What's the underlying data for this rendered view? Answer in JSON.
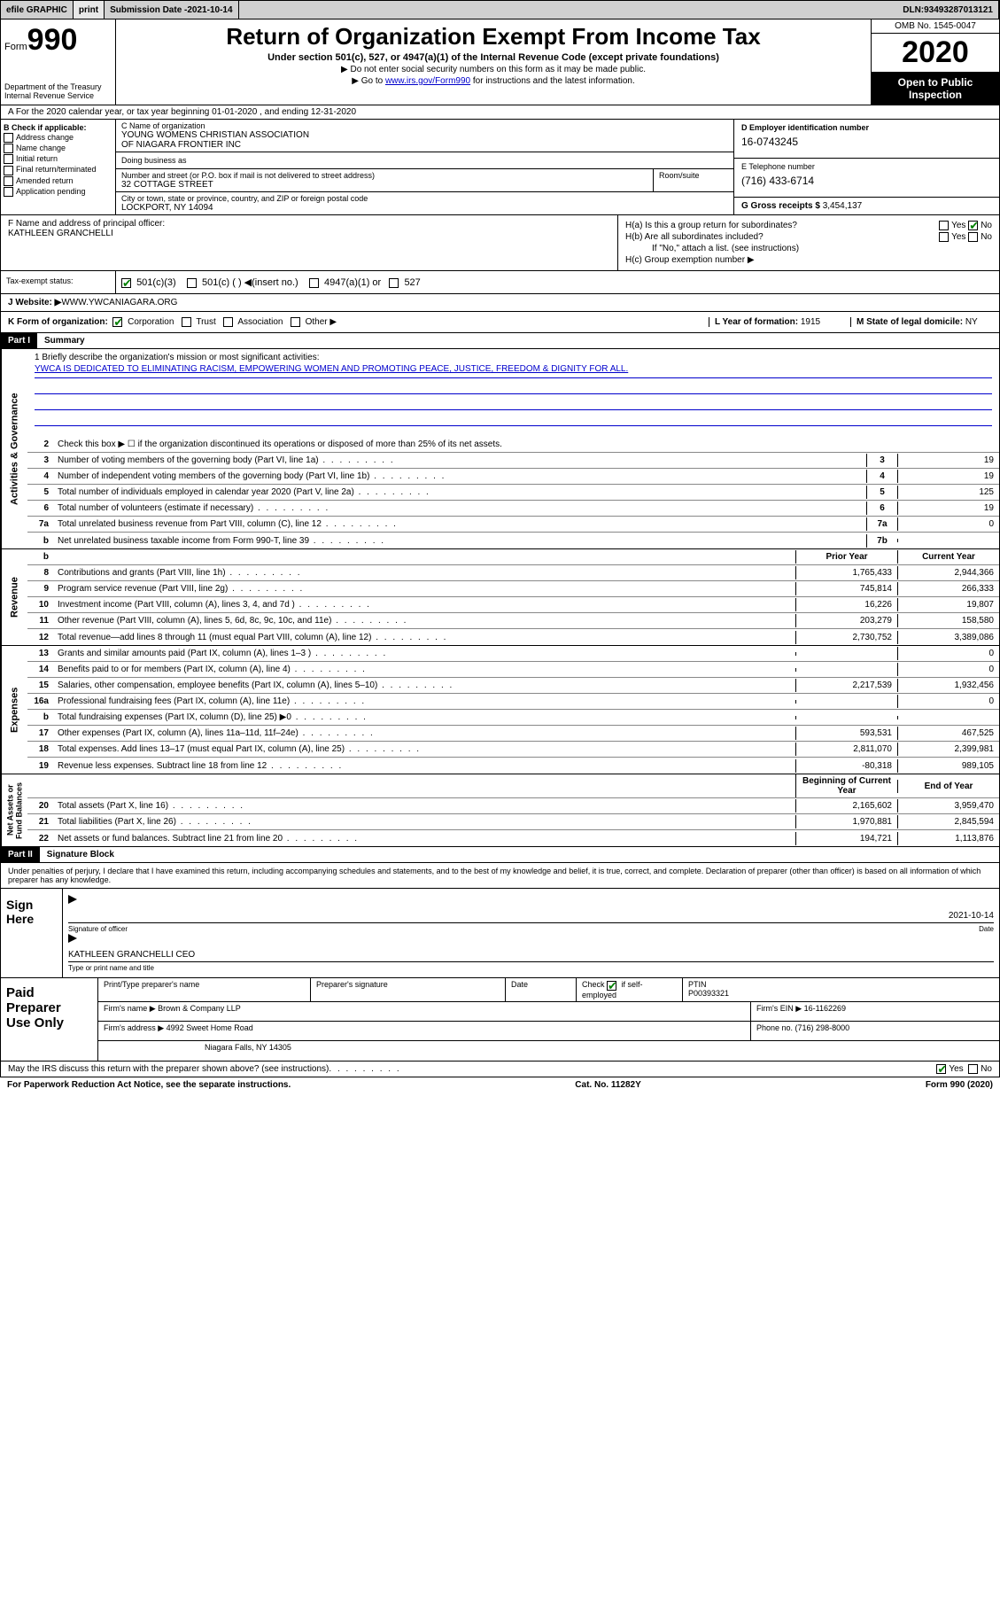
{
  "topbar": {
    "efile": "efile GRAPHIC",
    "print": "print",
    "sub_label": "Submission Date - ",
    "sub_date": "2021-10-14",
    "dln_label": "DLN: ",
    "dln": "93493287013121"
  },
  "header": {
    "form_word": "Form",
    "form_num": "990",
    "dept1": "Department of the Treasury",
    "dept2": "Internal Revenue Service",
    "title": "Return of Organization Exempt From Income Tax",
    "sub": "Under section 501(c), 527, or 4947(a)(1) of the Internal Revenue Code (except private foundations)",
    "arrow1": "▶ Do not enter social security numbers on this form as it may be made public.",
    "arrow2_pre": "▶ Go to ",
    "arrow2_link": "www.irs.gov/Form990",
    "arrow2_post": " for instructions and the latest information.",
    "omb": "OMB No. 1545-0047",
    "year": "2020",
    "open1": "Open to Public",
    "open2": "Inspection"
  },
  "rowA": "A  For the 2020 calendar year, or tax year beginning 01-01-2020     , and ending 12-31-2020",
  "boxB": {
    "label": "B Check if applicable:",
    "opts": [
      "Address change",
      "Name change",
      "Initial return",
      "Final return/terminated",
      "Amended return",
      "Application pending"
    ]
  },
  "boxC": {
    "name_lab": "C Name of organization",
    "name1": "YOUNG WOMENS CHRISTIAN ASSOCIATION",
    "name2": "OF NIAGARA FRONTIER INC",
    "dba_lab": "Doing business as",
    "street_lab": "Number and street (or P.O. box if mail is not delivered to street address)",
    "street": "32 COTTAGE STREET",
    "room_lab": "Room/suite",
    "city_lab": "City or town, state or province, country, and ZIP or foreign postal code",
    "city": "LOCKPORT, NY  14094"
  },
  "boxD": {
    "lab": "D Employer identification number",
    "val": "16-0743245"
  },
  "boxE": {
    "lab": "E Telephone number",
    "val": "(716) 433-6714"
  },
  "boxG": {
    "lab": "G Gross receipts $ ",
    "val": "3,454,137"
  },
  "boxF": {
    "lab": "F  Name and address of principal officer:",
    "val": "KATHLEEN GRANCHELLI"
  },
  "boxH": {
    "a": "H(a)  Is this a group return for subordinates?",
    "b": "H(b)  Are all subordinates included?",
    "note": "If \"No,\" attach a list. (see instructions)",
    "c": "H(c)  Group exemption number ▶"
  },
  "tax": {
    "lab": "Tax-exempt status:",
    "o1": "501(c)(3)",
    "o2": "501(c) (  ) ◀(insert no.)",
    "o3": "4947(a)(1) or",
    "o4": "527"
  },
  "rowJ": {
    "lab": "J    Website: ▶  ",
    "val": "WWW.YWCANIAGARA.ORG"
  },
  "rowK": {
    "k": "K Form of organization:",
    "opts": [
      "Corporation",
      "Trust",
      "Association",
      "Other ▶"
    ],
    "l_lab": "L Year of formation: ",
    "l_val": "1915",
    "m_lab": "M State of legal domicile: ",
    "m_val": "NY"
  },
  "part1": {
    "num": "Part I",
    "title": "Summary"
  },
  "mission": {
    "q": "1  Briefly describe the organization's mission or most significant activities:",
    "a": "YWCA IS DEDICATED TO ELIMINATING RACISM, EMPOWERING WOMEN AND PROMOTING PEACE, JUSTICE, FREEDOM & DIGNITY FOR ALL."
  },
  "gov": {
    "l2": "Check this box ▶ ☐  if the organization discontinued its operations or disposed of more than 25% of its net assets.",
    "rows": [
      {
        "n": "3",
        "d": "Number of voting members of the governing body (Part VI, line 1a)",
        "b": "3",
        "v": "19"
      },
      {
        "n": "4",
        "d": "Number of independent voting members of the governing body (Part VI, line 1b)",
        "b": "4",
        "v": "19"
      },
      {
        "n": "5",
        "d": "Total number of individuals employed in calendar year 2020 (Part V, line 2a)",
        "b": "5",
        "v": "125"
      },
      {
        "n": "6",
        "d": "Total number of volunteers (estimate if necessary)",
        "b": "6",
        "v": "19"
      },
      {
        "n": "7a",
        "d": "Total unrelated business revenue from Part VIII, column (C), line 12",
        "b": "7a",
        "v": "0"
      },
      {
        "n": "b",
        "d": "Net unrelated business taxable income from Form 990-T, line 39",
        "b": "7b",
        "v": ""
      }
    ]
  },
  "rev": {
    "hdr_prior": "Prior Year",
    "hdr_curr": "Current Year",
    "rows": [
      {
        "n": "8",
        "d": "Contributions and grants (Part VIII, line 1h)",
        "p": "1,765,433",
        "c": "2,944,366"
      },
      {
        "n": "9",
        "d": "Program service revenue (Part VIII, line 2g)",
        "p": "745,814",
        "c": "266,333"
      },
      {
        "n": "10",
        "d": "Investment income (Part VIII, column (A), lines 3, 4, and 7d )",
        "p": "16,226",
        "c": "19,807"
      },
      {
        "n": "11",
        "d": "Other revenue (Part VIII, column (A), lines 5, 6d, 8c, 9c, 10c, and 11e)",
        "p": "203,279",
        "c": "158,580"
      },
      {
        "n": "12",
        "d": "Total revenue—add lines 8 through 11 (must equal Part VIII, column (A), line 12)",
        "p": "2,730,752",
        "c": "3,389,086"
      }
    ]
  },
  "exp": {
    "rows": [
      {
        "n": "13",
        "d": "Grants and similar amounts paid (Part IX, column (A), lines 1–3 )",
        "p": "",
        "c": "0"
      },
      {
        "n": "14",
        "d": "Benefits paid to or for members (Part IX, column (A), line 4)",
        "p": "",
        "c": "0"
      },
      {
        "n": "15",
        "d": "Salaries, other compensation, employee benefits (Part IX, column (A), lines 5–10)",
        "p": "2,217,539",
        "c": "1,932,456"
      },
      {
        "n": "16a",
        "d": "Professional fundraising fees (Part IX, column (A), line 11e)",
        "p": "",
        "c": "0"
      },
      {
        "n": "b",
        "d": "Total fundraising expenses (Part IX, column (D), line 25) ▶0",
        "p": "",
        "c": ""
      },
      {
        "n": "17",
        "d": "Other expenses (Part IX, column (A), lines 11a–11d, 11f–24e)",
        "p": "593,531",
        "c": "467,525"
      },
      {
        "n": "18",
        "d": "Total expenses. Add lines 13–17 (must equal Part IX, column (A), line 25)",
        "p": "2,811,070",
        "c": "2,399,981"
      },
      {
        "n": "19",
        "d": "Revenue less expenses. Subtract line 18 from line 12",
        "p": "-80,318",
        "c": "989,105"
      }
    ]
  },
  "net": {
    "hdr_beg": "Beginning of Current Year",
    "hdr_end": "End of Year",
    "rows": [
      {
        "n": "20",
        "d": "Total assets (Part X, line 16)",
        "p": "2,165,602",
        "c": "3,959,470"
      },
      {
        "n": "21",
        "d": "Total liabilities (Part X, line 26)",
        "p": "1,970,881",
        "c": "2,845,594"
      },
      {
        "n": "22",
        "d": "Net assets or fund balances. Subtract line 21 from line 20",
        "p": "194,721",
        "c": "1,113,876"
      }
    ]
  },
  "part2": {
    "num": "Part II",
    "title": "Signature Block"
  },
  "pen": "Under penalties of perjury, I declare that I have examined this return, including accompanying schedules and statements, and to the best of my knowledge and belief, it is true, correct, and complete. Declaration of preparer (other than officer) is based on all information of which preparer has any knowledge.",
  "sign": {
    "lab1": "Sign",
    "lab2": "Here",
    "sig_lab": "Signature of officer",
    "date_lab": "Date",
    "date": "2021-10-14",
    "name": "KATHLEEN GRANCHELLI CEO",
    "name_lab": "Type or print name and title"
  },
  "prep": {
    "lab1": "Paid",
    "lab2": "Preparer",
    "lab3": "Use Only",
    "h1": "Print/Type preparer's name",
    "h2": "Preparer's signature",
    "h3": "Date",
    "h4a": "Check",
    "h4b": "if self-employed",
    "h5": "PTIN",
    "ptin": "P00393321",
    "firm_lab": "Firm's name      ▶",
    "firm": "Brown & Company LLP",
    "ein_lab": "Firm's EIN ▶",
    "ein": "16-1162269",
    "addr_lab": "Firm's address ▶",
    "addr1": "4992 Sweet Home Road",
    "addr2": "Niagara Falls, NY  14305",
    "ph_lab": "Phone no. ",
    "ph": "(716) 298-8000"
  },
  "irs_discuss": "May the IRS discuss this return with the preparer shown above? (see instructions)",
  "footer": {
    "pra": "For Paperwork Reduction Act Notice, see the separate instructions.",
    "cat": "Cat. No. 11282Y",
    "form": "Form 990 (2020)"
  },
  "yn": {
    "yes": "Yes",
    "no": "No"
  }
}
